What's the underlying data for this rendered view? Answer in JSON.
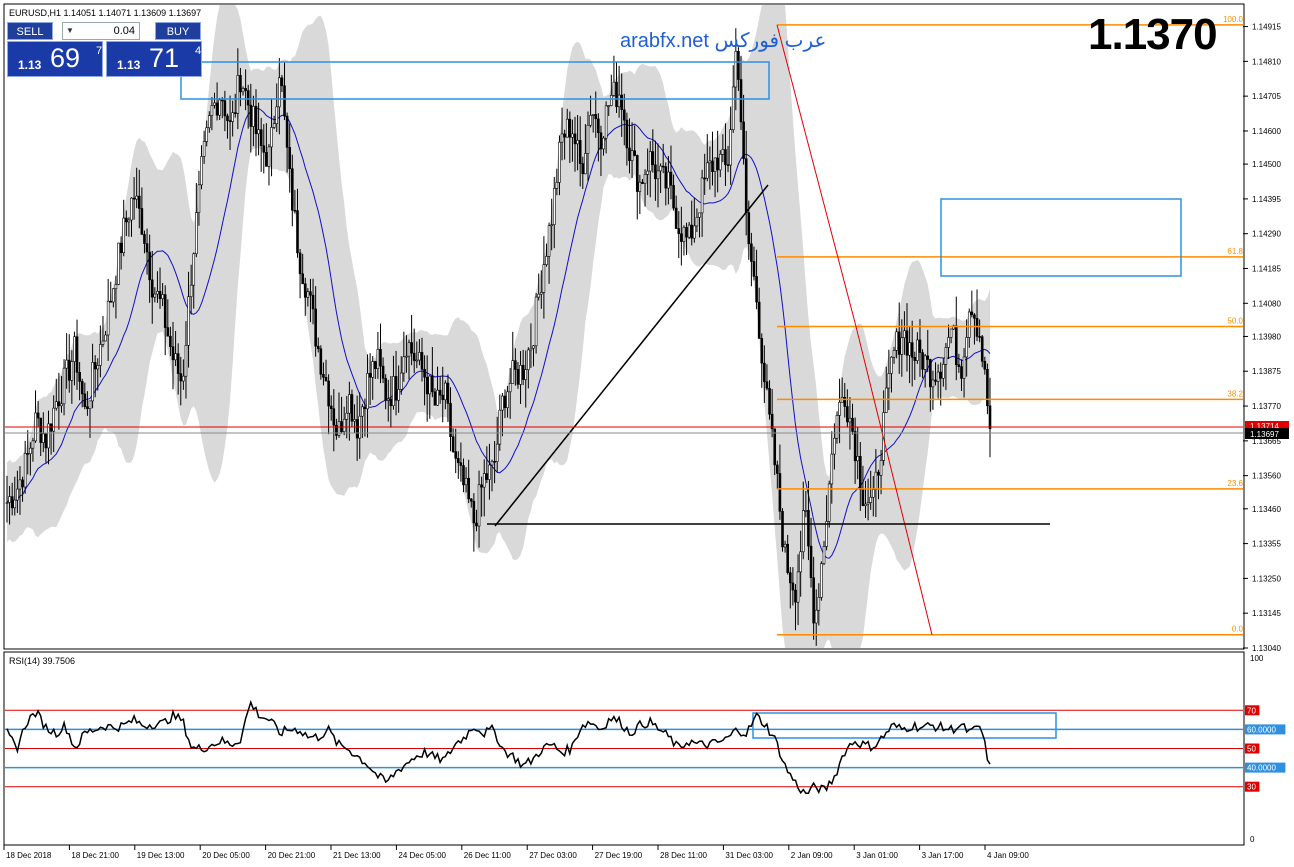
{
  "header": {
    "info": "EURUSD,H1  1.14051 1.14071 1.13609 1.13697",
    "watermark": "arabfx.net عرب فوركس",
    "big_price": "1.1370"
  },
  "trade_panel": {
    "sell_label": "SELL",
    "buy_label": "BUY",
    "lot": "0.04",
    "sell_prefix": "1.13",
    "sell_big": "69",
    "sell_sup": "7",
    "buy_prefix": "1.13",
    "buy_big": "71",
    "buy_sup": "4"
  },
  "colors": {
    "candle": "#000000",
    "ma": "#1010c8",
    "band": "#d9d9d9",
    "fib": "#ff8c00",
    "zone": "#2e90e0",
    "trend": "#000000",
    "fib_diag": "#e00000",
    "rsi_red": "#e00000",
    "rsi_blue": "#2e90e0"
  },
  "chart_data": [
    {
      "type": "candlestick",
      "symbol": "EURUSD",
      "timeframe": "H1",
      "ohlc_last": {
        "open": 1.14051,
        "high": 1.14071,
        "low": 1.13609,
        "close": 1.13697
      },
      "ylim": [
        1.1304,
        1.1498
      ],
      "y_ticks": [
        "1.14915",
        "1.14810",
        "1.14705",
        "1.14600",
        "1.14500",
        "1.14395",
        "1.14290",
        "1.14185",
        "1.14080",
        "1.13980",
        "1.13875",
        "1.13770",
        "1.13665",
        "1.13560",
        "1.13460",
        "1.13355",
        "1.13250",
        "1.13145",
        "1.13040"
      ],
      "x_ticks": [
        "18 Dec 2018",
        "18 Dec 21:00",
        "19 Dec 13:00",
        "20 Dec 05:00",
        "20 Dec 21:00",
        "21 Dec 13:00",
        "24 Dec 05:00",
        "26 Dec 11:00",
        "27 Dec 03:00",
        "27 Dec 19:00",
        "28 Dec 11:00",
        "31 Dec 03:00",
        "2 Jan 09:00",
        "3 Jan 01:00",
        "3 Jan 17:00",
        "4 Jan 09:00"
      ],
      "current_price_label": "1.13697",
      "red_price_label": "1.13714",
      "fib_levels": [
        {
          "label": "100.0",
          "price": 1.1492
        },
        {
          "label": "61.8",
          "price": 1.1422
        },
        {
          "label": "50.0",
          "price": 1.1401
        },
        {
          "label": "38.2",
          "price": 1.1379
        },
        {
          "label": "23.6",
          "price": 1.1352
        },
        {
          "label": "0.0",
          "price": 1.1308
        }
      ],
      "close_path": [
        1.1348,
        1.1352,
        1.136,
        1.1373,
        1.1367,
        1.1378,
        1.1385,
        1.1394,
        1.1375,
        1.1388,
        1.14,
        1.1415,
        1.143,
        1.1441,
        1.1431,
        1.1413,
        1.1406,
        1.1392,
        1.1384,
        1.142,
        1.1448,
        1.1466,
        1.1472,
        1.146,
        1.1477,
        1.1466,
        1.1455,
        1.1452,
        1.148,
        1.1446,
        1.1423,
        1.141,
        1.1394,
        1.1382,
        1.1368,
        1.1381,
        1.1371,
        1.1384,
        1.1391,
        1.138,
        1.1383,
        1.1397,
        1.1391,
        1.1386,
        1.1377,
        1.138,
        1.136,
        1.1352,
        1.1342,
        1.1355,
        1.1358,
        1.138,
        1.1386,
        1.1388,
        1.1398,
        1.1418,
        1.1435,
        1.1458,
        1.1462,
        1.1448,
        1.1468,
        1.1459,
        1.147,
        1.1472,
        1.1454,
        1.1444,
        1.1452,
        1.1446,
        1.1443,
        1.1432,
        1.1426,
        1.1437,
        1.1448,
        1.1452,
        1.1448,
        1.1488,
        1.143,
        1.141,
        1.138,
        1.1357,
        1.133,
        1.1322,
        1.1345,
        1.1312,
        1.1338,
        1.137,
        1.1382,
        1.1368,
        1.135,
        1.1347,
        1.137,
        1.1392,
        1.14,
        1.1393,
        1.1392,
        1.1387,
        1.139,
        1.14,
        1.1388,
        1.141,
        1.1398,
        1.137
      ]
    },
    {
      "type": "line",
      "indicator": "RSI(14)",
      "title": "RSI(14) 39.7506",
      "ylim": [
        0,
        100
      ],
      "y_ticks": [
        "100",
        "0"
      ],
      "levels": [
        {
          "label": "70",
          "value": 70,
          "color": "red"
        },
        {
          "label": "60.0000",
          "value": 60,
          "color": "blue"
        },
        {
          "label": "50",
          "value": 50,
          "color": "red"
        },
        {
          "label": "40.0000",
          "value": 40,
          "color": "blue"
        },
        {
          "label": "30",
          "value": 30,
          "color": "red"
        }
      ],
      "values": [
        58,
        50,
        64,
        69,
        61,
        58,
        62,
        50,
        58,
        60,
        62,
        61,
        62,
        65,
        62,
        63,
        63,
        67,
        65,
        50,
        50,
        52,
        54,
        52,
        55,
        74,
        67,
        65,
        58,
        60,
        60,
        56,
        56,
        60,
        52,
        50,
        46,
        42,
        36,
        32,
        38,
        42,
        46,
        48,
        45,
        44,
        52,
        56,
        62,
        58,
        60,
        49,
        46,
        41,
        44,
        50,
        52,
        48,
        50,
        62,
        64,
        60,
        66,
        64,
        58,
        62,
        64,
        60,
        56,
        50,
        54,
        52,
        52,
        53,
        55,
        60,
        58,
        67,
        62,
        54,
        40,
        32,
        26,
        30,
        28,
        35,
        48,
        54,
        52,
        51,
        56,
        62,
        60,
        62,
        61,
        62,
        61,
        60,
        62,
        58,
        62,
        40
      ]
    }
  ]
}
